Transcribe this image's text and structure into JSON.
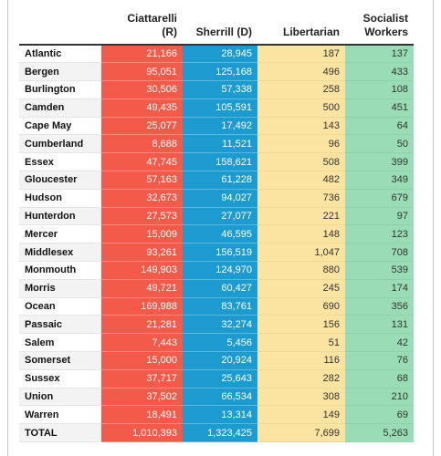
{
  "headers": {
    "county": "",
    "r": [
      "Ciattarelli",
      "(R)"
    ],
    "d": "Sherrill (D)",
    "l": "Libertarian",
    "s": [
      "Socialist",
      "Workers"
    ]
  },
  "colors": {
    "republican": "#f45a49",
    "democrat": "#1b9bd0",
    "libertarian": "#fbe4a1",
    "socialist_workers": "#99dcb6"
  },
  "rows": [
    {
      "county": "Atlantic",
      "r": "21,166",
      "d": "28,945",
      "l": "187",
      "s": "137"
    },
    {
      "county": "Bergen",
      "r": "95,051",
      "d": "125,168",
      "l": "496",
      "s": "433"
    },
    {
      "county": "Burlington",
      "r": "30,506",
      "d": "57,338",
      "l": "258",
      "s": "108"
    },
    {
      "county": "Camden",
      "r": "49,435",
      "d": "105,591",
      "l": "500",
      "s": "451"
    },
    {
      "county": "Cape May",
      "r": "25,077",
      "d": "17,492",
      "l": "143",
      "s": "64"
    },
    {
      "county": "Cumberland",
      "r": "8,688",
      "d": "11,521",
      "l": "96",
      "s": "50"
    },
    {
      "county": "Essex",
      "r": "47,745",
      "d": "158,621",
      "l": "508",
      "s": "399"
    },
    {
      "county": "Gloucester",
      "r": "57,163",
      "d": "61,228",
      "l": "482",
      "s": "349"
    },
    {
      "county": "Hudson",
      "r": "32,673",
      "d": "94,027",
      "l": "736",
      "s": "679"
    },
    {
      "county": "Hunterdon",
      "r": "27,573",
      "d": "27,077",
      "l": "221",
      "s": "97"
    },
    {
      "county": "Mercer",
      "r": "15,009",
      "d": "46,595",
      "l": "148",
      "s": "123"
    },
    {
      "county": "Middlesex",
      "r": "93,261",
      "d": "156,519",
      "l": "1,047",
      "s": "708"
    },
    {
      "county": "Monmouth",
      "r": "149,903",
      "d": "124,970",
      "l": "880",
      "s": "539"
    },
    {
      "county": "Morris",
      "r": "49,721",
      "d": "60,427",
      "l": "245",
      "s": "174"
    },
    {
      "county": "Ocean",
      "r": "169,988",
      "d": "83,761",
      "l": "690",
      "s": "356"
    },
    {
      "county": "Passaic",
      "r": "21,281",
      "d": "32,274",
      "l": "156",
      "s": "131"
    },
    {
      "county": "Salem",
      "r": "7,443",
      "d": "5,456",
      "l": "51",
      "s": "42"
    },
    {
      "county": "Somerset",
      "r": "15,000",
      "d": "20,924",
      "l": "116",
      "s": "76"
    },
    {
      "county": "Sussex",
      "r": "37,717",
      "d": "25,643",
      "l": "282",
      "s": "68"
    },
    {
      "county": "Union",
      "r": "37,502",
      "d": "66,534",
      "l": "308",
      "s": "210"
    },
    {
      "county": "Warren",
      "r": "18,491",
      "d": "13,314",
      "l": "149",
      "s": "69"
    }
  ],
  "total": {
    "county": "TOTAL",
    "r": "1,010,393",
    "d": "1,323,425",
    "l": "7,699",
    "s": "5,263"
  }
}
